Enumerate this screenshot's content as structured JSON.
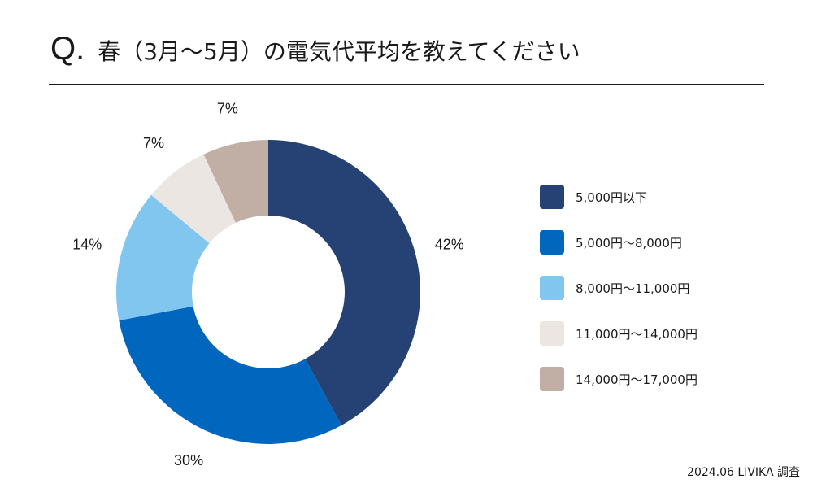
{
  "header": {
    "q_mark": "Q.",
    "title": "春（3月〜5月）の電気代平均を教えてください"
  },
  "chart_data": {
    "type": "pie",
    "donut": true,
    "start": "top, clockwise",
    "categories": [
      "5,000円以下",
      "5,000円〜8,000円",
      "8,000円〜11,000円",
      "11,000円〜14,000円",
      "14,000円〜17,000円"
    ],
    "values": [
      42,
      30,
      14,
      7,
      7
    ],
    "labels": [
      "42%",
      "30%",
      "14%",
      "7%",
      "7%"
    ],
    "colors": [
      "#264174",
      "#0066be",
      "#80c6ee",
      "#ebe6e2",
      "#c1afa5"
    ],
    "legend_position": "right",
    "title": "春（3月〜5月）の電気代平均を教えてください"
  },
  "footer": {
    "source": "2024.06 LIVIKA 調査"
  }
}
